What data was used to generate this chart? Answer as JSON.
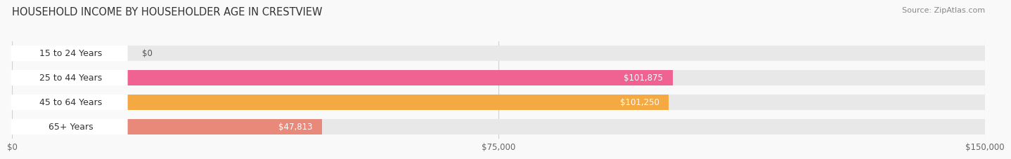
{
  "title": "HOUSEHOLD INCOME BY HOUSEHOLDER AGE IN CRESTVIEW",
  "source": "Source: ZipAtlas.com",
  "categories": [
    "15 to 24 Years",
    "25 to 44 Years",
    "45 to 64 Years",
    "65+ Years"
  ],
  "values": [
    0,
    101875,
    101250,
    47813
  ],
  "bar_colors": [
    "#b3bde8",
    "#f06292",
    "#f4a942",
    "#e8897a"
  ],
  "bar_bg_color": "#e8e8e8",
  "value_labels": [
    "$0",
    "$101,875",
    "$101,250",
    "$47,813"
  ],
  "x_ticks": [
    0,
    75000,
    150000
  ],
  "x_tick_labels": [
    "$0",
    "$75,000",
    "$150,000"
  ],
  "xlim": [
    0,
    150000
  ],
  "background_color": "#f9f9f9",
  "title_fontsize": 10.5,
  "source_fontsize": 8,
  "label_fontsize": 9,
  "value_fontsize": 8.5,
  "tick_fontsize": 8.5,
  "pill_color": "#ffffff",
  "pill_text_color": "#333333",
  "grid_color": "#d0d0d0"
}
